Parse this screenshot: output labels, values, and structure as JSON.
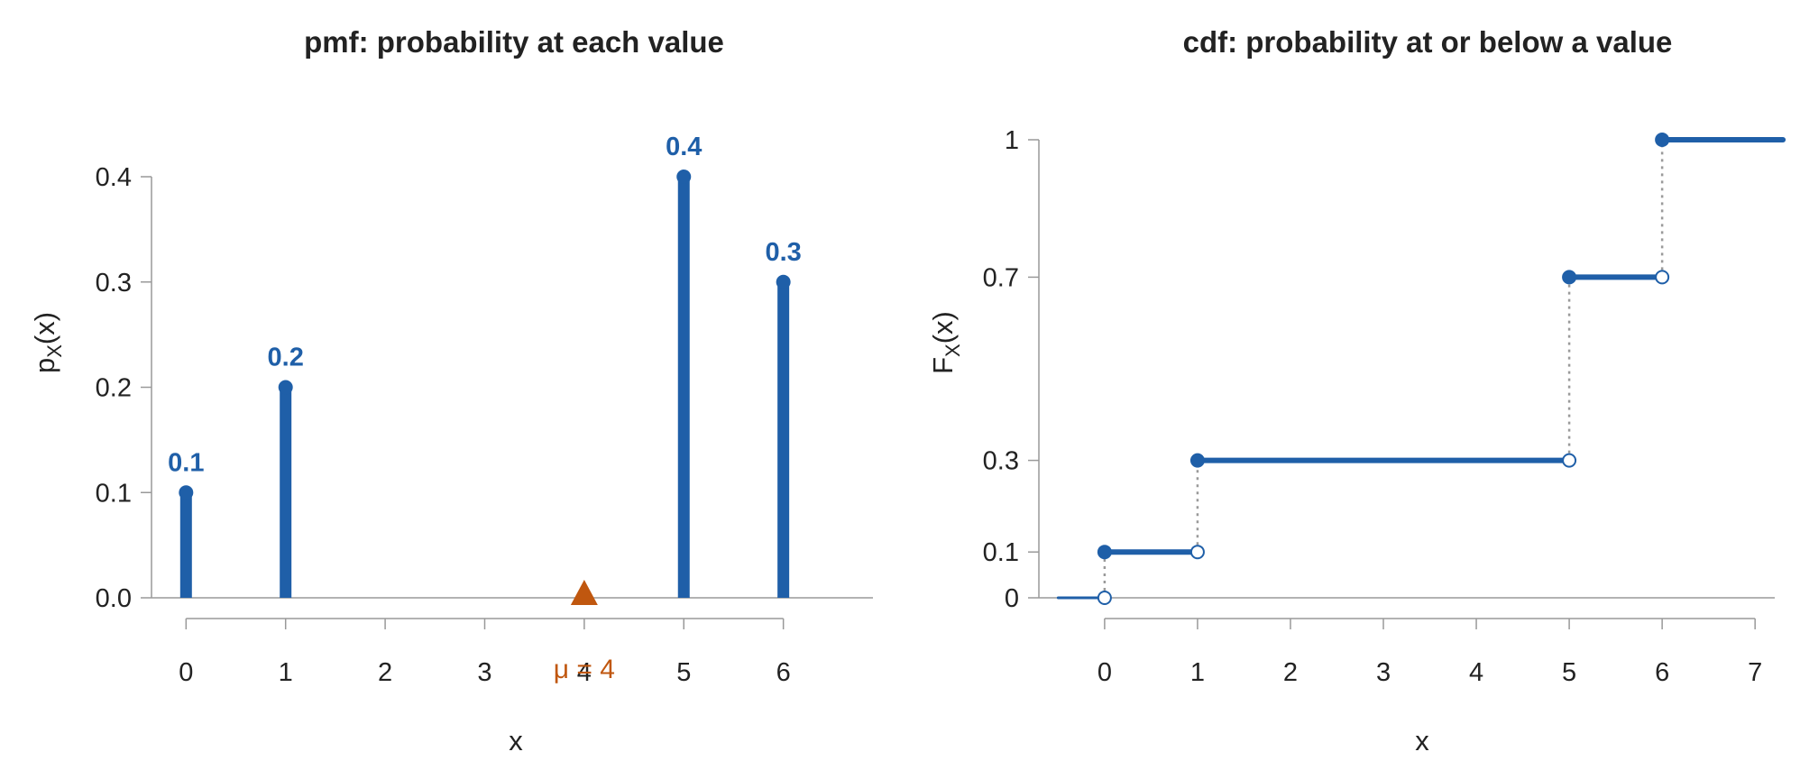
{
  "colors": {
    "primary": "#1f5fa8",
    "accent": "#c0570f",
    "axis": "#999999",
    "text": "#222222",
    "drop": "#9a9a9a"
  },
  "chart_data": [
    {
      "type": "bar",
      "subtype": "stem",
      "title": "pmf: probability at each value",
      "xlabel": "x",
      "ylabel": "p",
      "ylabel_sub": "X",
      "ylabel_tail": "(x)",
      "x_ticks": [
        0,
        1,
        2,
        3,
        4,
        5,
        6
      ],
      "x_tick_labels": [
        "0",
        "1",
        "2",
        "3",
        "4",
        "5",
        "6"
      ],
      "y_ticks": [
        0,
        0.1,
        0.2,
        0.3,
        0.4
      ],
      "y_tick_labels": [
        "0.0",
        "0.1",
        "0.2",
        "0.3",
        "0.4"
      ],
      "xlim": [
        -0.8,
        6.9
      ],
      "ylim": [
        0,
        0.4
      ],
      "x": [
        0,
        1,
        5,
        6
      ],
      "values": [
        0.1,
        0.2,
        0.4,
        0.3
      ],
      "value_labels": [
        "0.1",
        "0.2",
        "0.4",
        "0.3"
      ],
      "mean": {
        "x": 4,
        "label": "μ = 4"
      },
      "grid": false,
      "legend": "none"
    },
    {
      "type": "line",
      "subtype": "step",
      "title": "cdf: probability at or below a value",
      "xlabel": "x",
      "ylabel": "F",
      "ylabel_sub": "X",
      "ylabel_tail": "(x)",
      "x_ticks": [
        0,
        1,
        2,
        3,
        4,
        5,
        6,
        7
      ],
      "x_tick_labels": [
        "0",
        "1",
        "2",
        "3",
        "4",
        "5",
        "6",
        "7"
      ],
      "y_ticks": [
        0,
        0.1,
        0.3,
        0.7,
        1
      ],
      "y_tick_labels": [
        "0",
        "0.1",
        "0.3",
        "0.7",
        "1"
      ],
      "xlim": [
        -0.95,
        7.6
      ],
      "ylim": [
        0,
        1
      ],
      "segments": [
        {
          "x0": -0.5,
          "x1": 0,
          "y": 0
        },
        {
          "x0": 0,
          "x1": 1,
          "y": 0.1
        },
        {
          "x0": 1,
          "x1": 5,
          "y": 0.3
        },
        {
          "x0": 5,
          "x1": 6,
          "y": 0.7
        },
        {
          "x0": 6,
          "x1": 7.3,
          "y": 1
        }
      ],
      "jumps": [
        {
          "x": 0,
          "from": 0,
          "to": 0.1
        },
        {
          "x": 1,
          "from": 0.1,
          "to": 0.3
        },
        {
          "x": 5,
          "from": 0.3,
          "to": 0.7
        },
        {
          "x": 6,
          "from": 0.7,
          "to": 1
        }
      ],
      "grid": false,
      "legend": "none"
    }
  ]
}
